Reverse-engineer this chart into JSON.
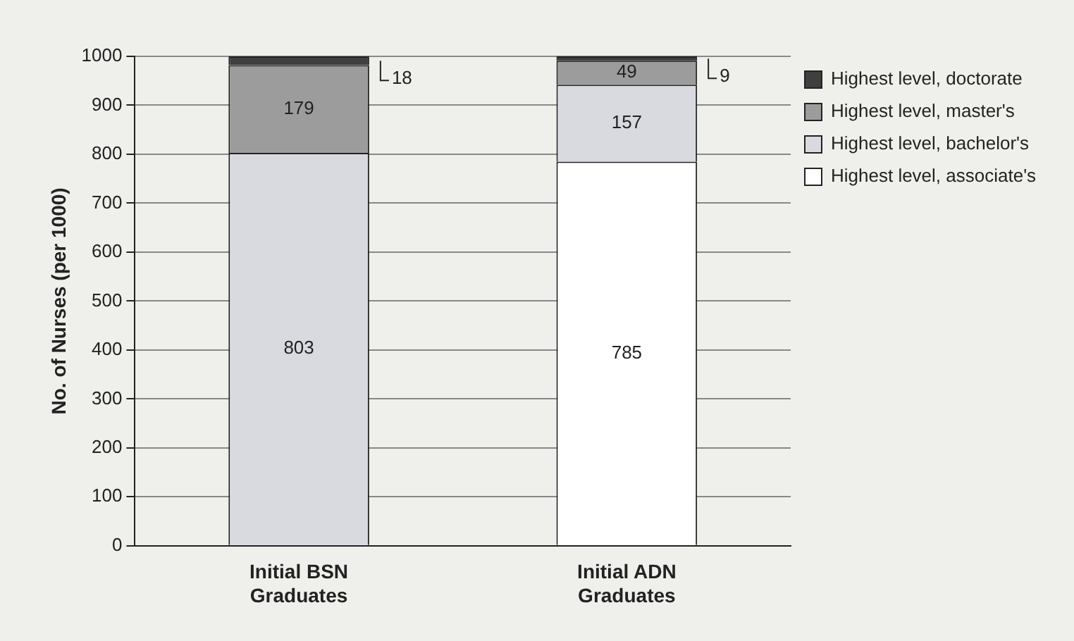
{
  "chart_data": {
    "type": "bar",
    "stacked": true,
    "ylabel": "No. of Nurses (per 1000)",
    "categories": [
      "Initial BSN Graduates",
      "Initial ADN Graduates"
    ],
    "series": [
      {
        "name": "Highest level, associate's",
        "color": "#ffffff",
        "values": [
          0,
          785
        ],
        "value_labels": [
          null,
          "785"
        ]
      },
      {
        "name": "Highest level, bachelor's",
        "color": "#d9d9e0",
        "values": [
          803,
          157
        ],
        "value_labels": [
          "803",
          "157"
        ]
      },
      {
        "name": "Highest level, master's",
        "color": "#9c9c9c",
        "values": [
          179,
          49
        ],
        "value_labels": [
          "179",
          "49"
        ]
      },
      {
        "name": "Highest level, doctorate",
        "color": "#3f3f3f",
        "values": [
          18,
          9
        ],
        "value_labels": [
          "18",
          "9"
        ]
      }
    ],
    "ylim": [
      0,
      1000
    ],
    "yticks": [
      0,
      100,
      200,
      300,
      400,
      500,
      600,
      700,
      800,
      900,
      1000
    ],
    "grid": "y",
    "legend": "top right"
  }
}
